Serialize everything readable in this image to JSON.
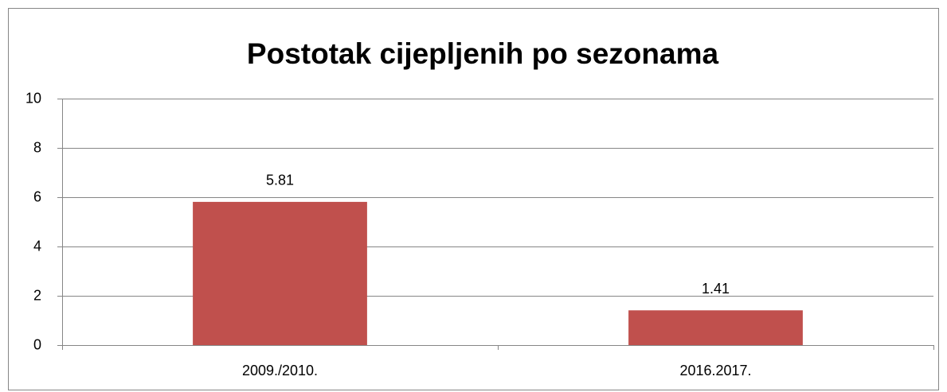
{
  "chart_data": {
    "type": "bar",
    "title": "Postotak cijepljenih po sezonama",
    "categories": [
      "2009./2010.",
      "2016.2017."
    ],
    "values": [
      5.81,
      1.41
    ],
    "color": "#c0504d",
    "ylim": [
      0,
      10
    ],
    "yticks": [
      0,
      2,
      4,
      6,
      8,
      10
    ],
    "grid": true
  }
}
